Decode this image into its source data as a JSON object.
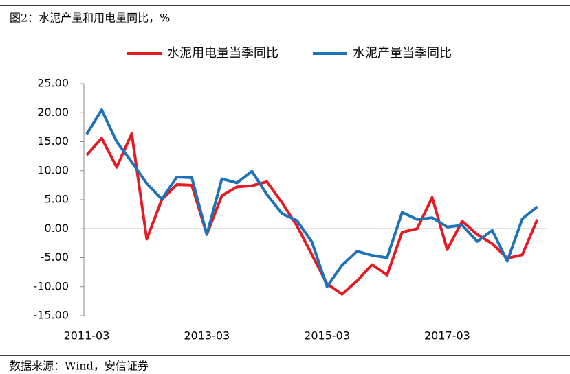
{
  "chart_data": {
    "type": "line",
    "title": "图2：水泥产量和用电量同比，%",
    "source": "数据来源：Wind，安信证券",
    "categories": [
      "2011-03",
      null,
      null,
      null,
      null,
      null,
      null,
      null,
      "2013-03",
      null,
      null,
      null,
      null,
      null,
      null,
      null,
      "2015-03",
      null,
      null,
      null,
      null,
      null,
      null,
      null,
      "2017-03",
      null,
      null,
      null,
      null,
      null,
      null
    ],
    "series": [
      {
        "name": "水泥用电量当季同比",
        "color": "#e31b23",
        "values": [
          12.7,
          15.6,
          10.6,
          16.4,
          -1.8,
          5.0,
          7.6,
          7.5,
          -1.0,
          5.7,
          7.2,
          7.4,
          8.1,
          4.5,
          0.5,
          -4.5,
          -9.5,
          -11.3,
          -9.0,
          -6.2,
          -8.0,
          -0.6,
          0.0,
          5.4,
          -3.6,
          1.3,
          -1.0,
          -2.6,
          -5.1,
          -4.5,
          1.6
        ]
      },
      {
        "name": "水泥产量当季同比",
        "color": "#1f72b8",
        "values": [
          16.3,
          20.5,
          15.0,
          11.5,
          7.8,
          5.1,
          8.9,
          8.8,
          -1.0,
          8.6,
          7.9,
          9.9,
          5.9,
          2.6,
          1.4,
          -2.3,
          -10.0,
          -6.3,
          -3.9,
          -4.6,
          -5.0,
          2.8,
          1.6,
          1.9,
          0.3,
          0.6,
          -2.2,
          -0.3,
          -5.6,
          1.7,
          3.8
        ]
      }
    ],
    "ylim": [
      -15,
      25
    ],
    "yticks": [
      {
        "value": -15,
        "label": "-15.00"
      },
      {
        "value": -10,
        "label": "-10.00"
      },
      {
        "value": -5,
        "label": "-5.00"
      },
      {
        "value": 0,
        "label": "0.00"
      },
      {
        "value": 5,
        "label": "5.00"
      },
      {
        "value": 10,
        "label": "10.00"
      },
      {
        "value": 15,
        "label": "15.00"
      },
      {
        "value": 20,
        "label": "20.00"
      },
      {
        "value": 25,
        "label": "25.00"
      }
    ],
    "legend": "top"
  }
}
